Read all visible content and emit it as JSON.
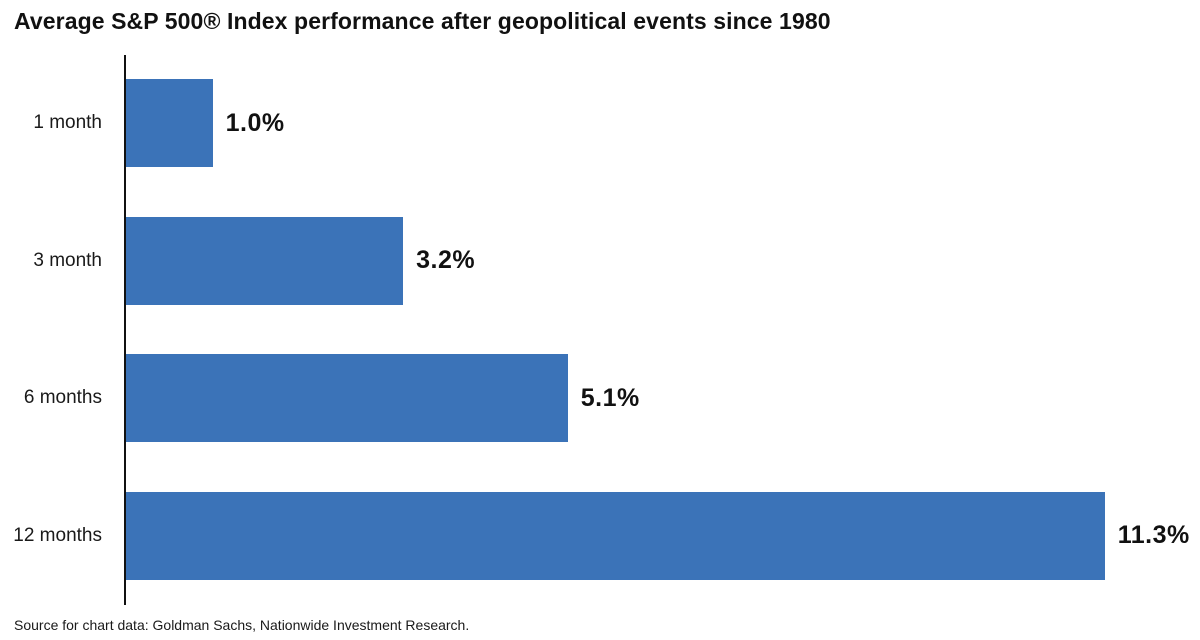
{
  "title": "Average S&P 500® Index performance after geopolitical events since 1980",
  "source": "Source for chart data: Goldman Sachs, Nationwide Investment Research.",
  "colors": {
    "bar": "#3b73b8",
    "axis": "#111111",
    "text": "#1a1a1a"
  },
  "chart_data": {
    "type": "bar",
    "orientation": "horizontal",
    "title": "Average S&P 500® Index performance after geopolitical events since 1980",
    "categories": [
      "1 month",
      "3 month",
      "6 months",
      "12 months"
    ],
    "values": [
      1.0,
      3.2,
      5.1,
      11.3
    ],
    "value_labels": [
      "1.0%",
      "3.2%",
      "5.1%",
      "11.3%"
    ],
    "xlabel": "",
    "ylabel": "",
    "xlim": [
      0,
      12.4
    ],
    "grid": false,
    "legend": false,
    "bar_color": "#3b73b8",
    "annotation": "Source for chart data: Goldman Sachs, Nationwide Investment Research."
  }
}
